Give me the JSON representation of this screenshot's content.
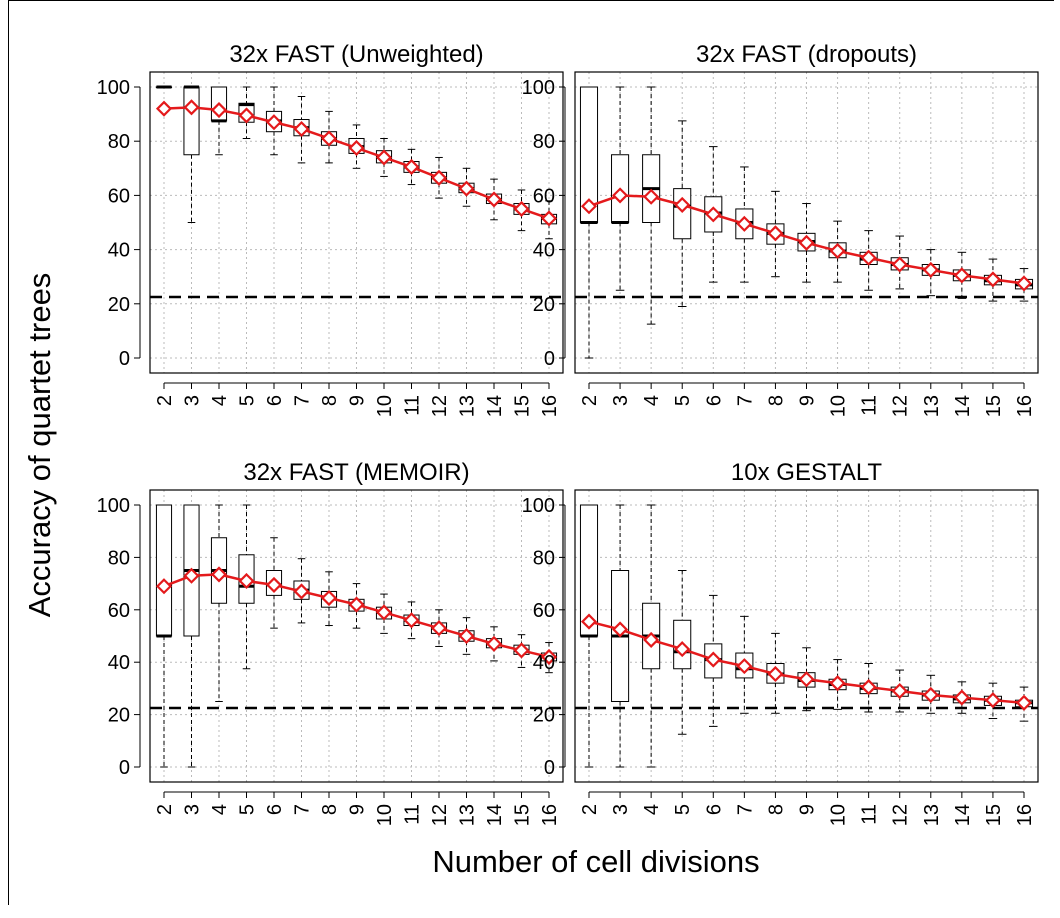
{
  "figure": {
    "ylabel": "Accuracy of quartet trees",
    "xlabel": "Number of cell divisions"
  },
  "chart_data": [
    {
      "type": "box",
      "title": "32x FAST (Unweighted)",
      "categories": [
        "2",
        "3",
        "4",
        "5",
        "6",
        "7",
        "8",
        "9",
        "10",
        "11",
        "12",
        "13",
        "14",
        "15",
        "16"
      ],
      "ylim": [
        0,
        100
      ],
      "yticks": [
        0,
        20,
        40,
        60,
        80,
        100
      ],
      "grid": true,
      "reference_line": 22.5,
      "boxes": [
        {
          "min": 100,
          "q1": 100,
          "median": 100,
          "q3": 100,
          "max": 100
        },
        {
          "min": 50,
          "q1": 75,
          "median": 100,
          "q3": 100,
          "max": 100
        },
        {
          "min": 75,
          "q1": 87.5,
          "median": 87.5,
          "q3": 100,
          "max": 100
        },
        {
          "min": 81,
          "q1": 87,
          "median": 93.5,
          "q3": 94,
          "max": 100
        },
        {
          "min": 75,
          "q1": 83.5,
          "median": 87.5,
          "q3": 91,
          "max": 100
        },
        {
          "min": 72,
          "q1": 82,
          "median": 85,
          "q3": 88,
          "max": 96.5
        },
        {
          "min": 72,
          "q1": 78.5,
          "median": 81,
          "q3": 83.5,
          "max": 91
        },
        {
          "min": 70,
          "q1": 75.5,
          "median": 78,
          "q3": 81,
          "max": 86
        },
        {
          "min": 67,
          "q1": 72,
          "median": 74,
          "q3": 76.5,
          "max": 81
        },
        {
          "min": 64,
          "q1": 68.5,
          "median": 70.5,
          "q3": 72.5,
          "max": 77
        },
        {
          "min": 59,
          "q1": 64.5,
          "median": 66.5,
          "q3": 68.5,
          "max": 74
        },
        {
          "min": 56,
          "q1": 61,
          "median": 62.5,
          "q3": 64.5,
          "max": 70
        },
        {
          "min": 51,
          "q1": 57,
          "median": 58.5,
          "q3": 60.5,
          "max": 66
        },
        {
          "min": 47,
          "q1": 53,
          "median": 55,
          "q3": 57,
          "max": 62
        },
        {
          "min": 44,
          "q1": 49.5,
          "median": 51.5,
          "q3": 53,
          "max": 58
        }
      ],
      "mean": [
        92,
        92.5,
        91.5,
        89.5,
        87,
        84.5,
        81,
        77.5,
        74,
        70.5,
        66.5,
        62.5,
        58.5,
        55,
        51.5
      ]
    },
    {
      "type": "box",
      "title": "32x FAST (dropouts)",
      "categories": [
        "2",
        "3",
        "4",
        "5",
        "6",
        "7",
        "8",
        "9",
        "10",
        "11",
        "12",
        "13",
        "14",
        "15",
        "16"
      ],
      "ylim": [
        0,
        100
      ],
      "yticks": [
        0,
        20,
        40,
        60,
        80,
        100
      ],
      "grid": true,
      "reference_line": 22.5,
      "boxes": [
        {
          "min": 0,
          "q1": 50,
          "median": 50,
          "q3": 100,
          "max": 100
        },
        {
          "min": 25,
          "q1": 50,
          "median": 50,
          "q3": 75,
          "max": 100
        },
        {
          "min": 12.5,
          "q1": 50,
          "median": 62.5,
          "q3": 75,
          "max": 100
        },
        {
          "min": 19,
          "q1": 44,
          "median": 56,
          "q3": 62.5,
          "max": 87.5
        },
        {
          "min": 28,
          "q1": 46.5,
          "median": 53.5,
          "q3": 59.5,
          "max": 78
        },
        {
          "min": 28,
          "q1": 44,
          "median": 50,
          "q3": 55,
          "max": 70.5
        },
        {
          "min": 30,
          "q1": 42,
          "median": 46,
          "q3": 49.5,
          "max": 61.5
        },
        {
          "min": 28,
          "q1": 39.5,
          "median": 43,
          "q3": 46,
          "max": 57
        },
        {
          "min": 28,
          "q1": 37,
          "median": 39.5,
          "q3": 42.5,
          "max": 50.5
        },
        {
          "min": 25,
          "q1": 34.5,
          "median": 36.5,
          "q3": 39,
          "max": 47
        },
        {
          "min": 25.5,
          "q1": 32.5,
          "median": 34.5,
          "q3": 37,
          "max": 45
        },
        {
          "min": 23,
          "q1": 30.5,
          "median": 32.5,
          "q3": 34.5,
          "max": 40
        },
        {
          "min": 22,
          "q1": 28.5,
          "median": 30.5,
          "q3": 32.5,
          "max": 39
        },
        {
          "min": 21,
          "q1": 27,
          "median": 28.5,
          "q3": 30.5,
          "max": 36.5
        },
        {
          "min": 21,
          "q1": 25.5,
          "median": 27,
          "q3": 29,
          "max": 33
        }
      ],
      "mean": [
        56,
        60,
        59.5,
        56.5,
        53,
        49.5,
        46,
        42.5,
        39.5,
        37,
        34.5,
        32.5,
        30.5,
        29,
        27.5
      ]
    },
    {
      "type": "box",
      "title": "32x FAST (MEMOIR)",
      "categories": [
        "2",
        "3",
        "4",
        "5",
        "6",
        "7",
        "8",
        "9",
        "10",
        "11",
        "12",
        "13",
        "14",
        "15",
        "16"
      ],
      "ylim": [
        0,
        100
      ],
      "yticks": [
        0,
        20,
        40,
        60,
        80,
        100
      ],
      "grid": true,
      "reference_line": 22.5,
      "boxes": [
        {
          "min": 0,
          "q1": 50,
          "median": 50,
          "q3": 100,
          "max": 100
        },
        {
          "min": 0,
          "q1": 50,
          "median": 75,
          "q3": 100,
          "max": 100
        },
        {
          "min": 25,
          "q1": 62.5,
          "median": 75,
          "q3": 87.5,
          "max": 100
        },
        {
          "min": 37.5,
          "q1": 62.5,
          "median": 69,
          "q3": 81,
          "max": 100
        },
        {
          "min": 53,
          "q1": 65.5,
          "median": 69.5,
          "q3": 75,
          "max": 87.5
        },
        {
          "min": 55,
          "q1": 64,
          "median": 67.5,
          "q3": 71,
          "max": 79.5
        },
        {
          "min": 54,
          "q1": 61,
          "median": 64.5,
          "q3": 67,
          "max": 74.5
        },
        {
          "min": 53,
          "q1": 59.5,
          "median": 62,
          "q3": 64,
          "max": 70
        },
        {
          "min": 51,
          "q1": 56.5,
          "median": 59,
          "q3": 61,
          "max": 66
        },
        {
          "min": 49,
          "q1": 54,
          "median": 56,
          "q3": 58,
          "max": 63
        },
        {
          "min": 46,
          "q1": 51,
          "median": 53,
          "q3": 55,
          "max": 60
        },
        {
          "min": 43,
          "q1": 48,
          "median": 50,
          "q3": 52,
          "max": 57
        },
        {
          "min": 40.5,
          "q1": 45.5,
          "median": 47,
          "q3": 49,
          "max": 53.5
        },
        {
          "min": 38,
          "q1": 43,
          "median": 44.5,
          "q3": 46.5,
          "max": 50.5
        },
        {
          "min": 36,
          "q1": 40.5,
          "median": 42,
          "q3": 43.5,
          "max": 47.5
        }
      ],
      "mean": [
        69,
        73,
        73.5,
        71,
        69.5,
        67,
        64.5,
        62,
        59,
        56,
        53,
        50,
        47,
        44.5,
        42
      ]
    },
    {
      "type": "box",
      "title": "10x GESTALT",
      "categories": [
        "2",
        "3",
        "4",
        "5",
        "6",
        "7",
        "8",
        "9",
        "10",
        "11",
        "12",
        "13",
        "14",
        "15",
        "16"
      ],
      "ylim": [
        0,
        100
      ],
      "yticks": [
        0,
        20,
        40,
        60,
        80,
        100
      ],
      "grid": true,
      "reference_line": 22.5,
      "boxes": [
        {
          "min": 0,
          "q1": 50,
          "median": 50,
          "q3": 100,
          "max": 100
        },
        {
          "min": 0,
          "q1": 25,
          "median": 50,
          "q3": 75,
          "max": 100
        },
        {
          "min": 0,
          "q1": 37.5,
          "median": 50,
          "q3": 62.5,
          "max": 100
        },
        {
          "min": 12.5,
          "q1": 37.5,
          "median": 44,
          "q3": 56,
          "max": 75
        },
        {
          "min": 15.5,
          "q1": 34,
          "median": 41,
          "q3": 47,
          "max": 65.5
        },
        {
          "min": 20.5,
          "q1": 34,
          "median": 37.5,
          "q3": 43.5,
          "max": 57.5
        },
        {
          "min": 20.5,
          "q1": 32,
          "median": 35.5,
          "q3": 39.5,
          "max": 51
        },
        {
          "min": 21.5,
          "q1": 30.5,
          "median": 33,
          "q3": 36,
          "max": 45.5
        },
        {
          "min": 22,
          "q1": 29.5,
          "median": 31.5,
          "q3": 33.5,
          "max": 41
        },
        {
          "min": 21,
          "q1": 28,
          "median": 30,
          "q3": 32,
          "max": 39.5
        },
        {
          "min": 21,
          "q1": 27,
          "median": 29,
          "q3": 30.5,
          "max": 37
        },
        {
          "min": 20.5,
          "q1": 25.5,
          "median": 27.5,
          "q3": 29,
          "max": 35
        },
        {
          "min": 20.5,
          "q1": 24.5,
          "median": 26,
          "q3": 27.5,
          "max": 32.5
        },
        {
          "min": 18.5,
          "q1": 23.5,
          "median": 25.5,
          "q3": 27,
          "max": 32
        },
        {
          "min": 17.5,
          "q1": 23,
          "median": 24.5,
          "q3": 25.5,
          "max": 30.5
        }
      ],
      "mean": [
        55.5,
        52.5,
        48.5,
        45,
        41,
        38.5,
        35.5,
        33.5,
        32,
        30.5,
        29,
        27.5,
        26.5,
        25.5,
        24.5
      ]
    }
  ],
  "colors": {
    "mean_line": "#e41a1c",
    "box": "#000000",
    "grid": "#bbbbbb"
  }
}
